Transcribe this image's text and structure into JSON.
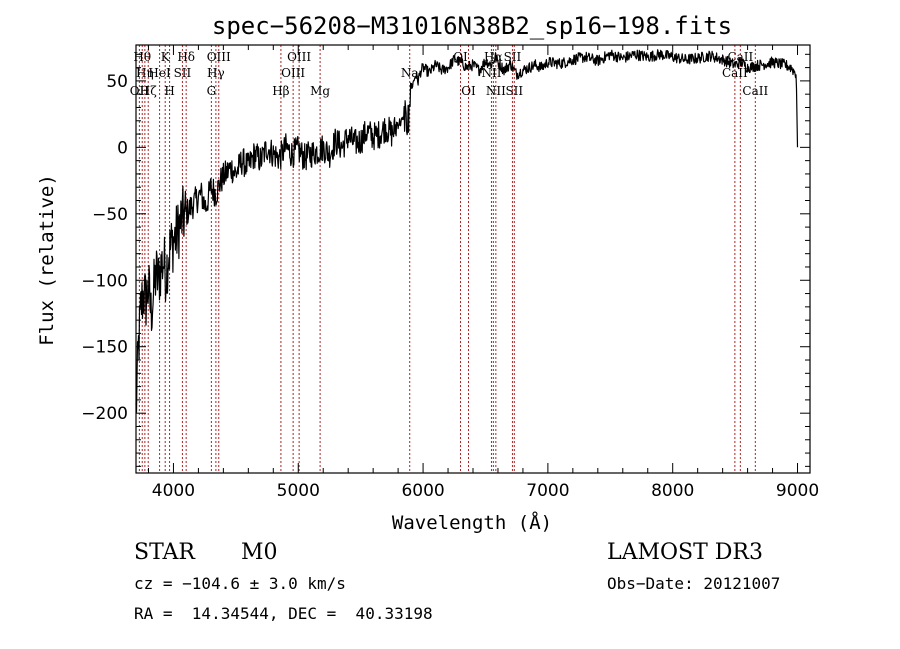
{
  "chart_data": {
    "type": "line",
    "title": "spec−56208−M31016N38B2_sp16−198.fits",
    "xlabel": "Wavelength (Å)",
    "ylabel": "Flux (relative)",
    "xlim": [
      3700,
      9100
    ],
    "ylim": [
      -245,
      77
    ],
    "xticks": [
      4000,
      5000,
      6000,
      7000,
      8000,
      9000
    ],
    "xtick_labels": [
      "4000",
      "5000",
      "6000",
      "7000",
      "8000",
      "9000"
    ],
    "yticks": [
      -200,
      -150,
      -100,
      -50,
      0,
      50
    ],
    "ytick_labels": [
      "−200",
      "−150",
      "−100",
      "−50",
      "0",
      "50"
    ],
    "series": [
      {
        "name": "flux",
        "x": [
          3700,
          3720,
          3740,
          3760,
          3780,
          3800,
          3820,
          3840,
          3860,
          3880,
          3900,
          3920,
          3940,
          3960,
          3980,
          4000,
          4030,
          4060,
          4100,
          4140,
          4180,
          4220,
          4260,
          4300,
          4340,
          4380,
          4420,
          4460,
          4500,
          4550,
          4600,
          4650,
          4700,
          4750,
          4800,
          4850,
          4900,
          4950,
          5000,
          5050,
          5100,
          5150,
          5200,
          5250,
          5300,
          5350,
          5400,
          5450,
          5500,
          5550,
          5600,
          5650,
          5700,
          5750,
          5800,
          5840,
          5860,
          5880,
          5900,
          5920,
          5940,
          5960,
          5980,
          6000,
          6050,
          6100,
          6150,
          6200,
          6250,
          6300,
          6350,
          6400,
          6450,
          6500,
          6550,
          6580,
          6600,
          6650,
          6700,
          6750,
          6800,
          6850,
          6900,
          6950,
          7000,
          7100,
          7200,
          7300,
          7400,
          7500,
          7600,
          7700,
          7800,
          7900,
          8000,
          8100,
          8200,
          8300,
          8400,
          8500,
          8550,
          8600,
          8700,
          8800,
          8900,
          8950,
          8990,
          9000
        ],
        "y": [
          -200,
          -150,
          -120,
          -110,
          -115,
          -105,
          -125,
          -110,
          -95,
          -100,
          -90,
          -85,
          -95,
          -80,
          -75,
          -70,
          -65,
          -55,
          -50,
          -45,
          -40,
          -35,
          -45,
          -30,
          -35,
          -25,
          -20,
          -15,
          -20,
          -10,
          -15,
          -5,
          -10,
          0,
          -5,
          -8,
          0,
          -5,
          -2,
          -8,
          -5,
          -3,
          0,
          -5,
          5,
          0,
          8,
          3,
          5,
          12,
          8,
          10,
          15,
          10,
          18,
          20,
          40,
          30,
          45,
          48,
          55,
          50,
          57,
          60,
          56,
          62,
          58,
          60,
          66,
          64,
          60,
          62,
          58,
          65,
          62,
          68,
          64,
          58,
          63,
          55,
          58,
          60,
          62,
          60,
          64,
          63,
          66,
          68,
          65,
          70,
          67,
          70,
          68,
          70,
          68,
          66,
          67,
          69,
          66,
          62,
          64,
          60,
          62,
          64,
          62,
          60,
          55,
          0
        ],
        "noise": 12
      }
    ],
    "lines": [
      {
        "wavelength": 3727,
        "label": "OII",
        "row": 3
      },
      {
        "wavelength": 3750,
        "label": "Hθ",
        "row": 1
      },
      {
        "wavelength": 3771,
        "label": "Hη",
        "row": 2
      },
      {
        "wavelength": 3798,
        "label": "Hζ",
        "row": 3
      },
      {
        "wavelength": 3889,
        "label": "HeI",
        "row": 2
      },
      {
        "wavelength": 3934,
        "label": "K",
        "row": 1
      },
      {
        "wavelength": 3969,
        "label": "H",
        "row": 3
      },
      {
        "wavelength": 4072,
        "label": "SII",
        "row": 2
      },
      {
        "wavelength": 4102,
        "label": "Hδ",
        "row": 1
      },
      {
        "wavelength": 4304,
        "label": "G",
        "row": 3
      },
      {
        "wavelength": 4340,
        "label": "Hγ",
        "row": 2
      },
      {
        "wavelength": 4363,
        "label": "OIII",
        "row": 1
      },
      {
        "wavelength": 4861,
        "label": "Hβ",
        "row": 3
      },
      {
        "wavelength": 4959,
        "label": "OIII",
        "row": 2
      },
      {
        "wavelength": 5007,
        "label": "OIII",
        "row": 1
      },
      {
        "wavelength": 5175,
        "label": "Mg",
        "row": 3
      },
      {
        "wavelength": 5893,
        "label": "Na",
        "row": 2
      },
      {
        "wavelength": 6300,
        "label": "OI",
        "row": 1
      },
      {
        "wavelength": 6364,
        "label": "OI",
        "row": 3
      },
      {
        "wavelength": 6548,
        "label": "NII",
        "row": 2
      },
      {
        "wavelength": 6563,
        "label": "Hα",
        "row": 1
      },
      {
        "wavelength": 6583,
        "label": "NII",
        "row": 3
      },
      {
        "wavelength": 6716,
        "label": "SII",
        "row": 1
      },
      {
        "wavelength": 6731,
        "label": "SII",
        "row": 3
      },
      {
        "wavelength": 8498,
        "label": "CaII",
        "row": 2
      },
      {
        "wavelength": 8542,
        "label": "CaII",
        "row": 1
      },
      {
        "wavelength": 8662,
        "label": "CaII",
        "row": 3
      }
    ]
  },
  "info": {
    "class": "STAR",
    "subclass": "M0",
    "survey": "LAMOST DR3",
    "cz": "cz = −104.6 ± 3.0 km/s",
    "obs_date": "Obs−Date: 20121007",
    "coords": "RA =  14.34544, DEC =  40.33198"
  }
}
